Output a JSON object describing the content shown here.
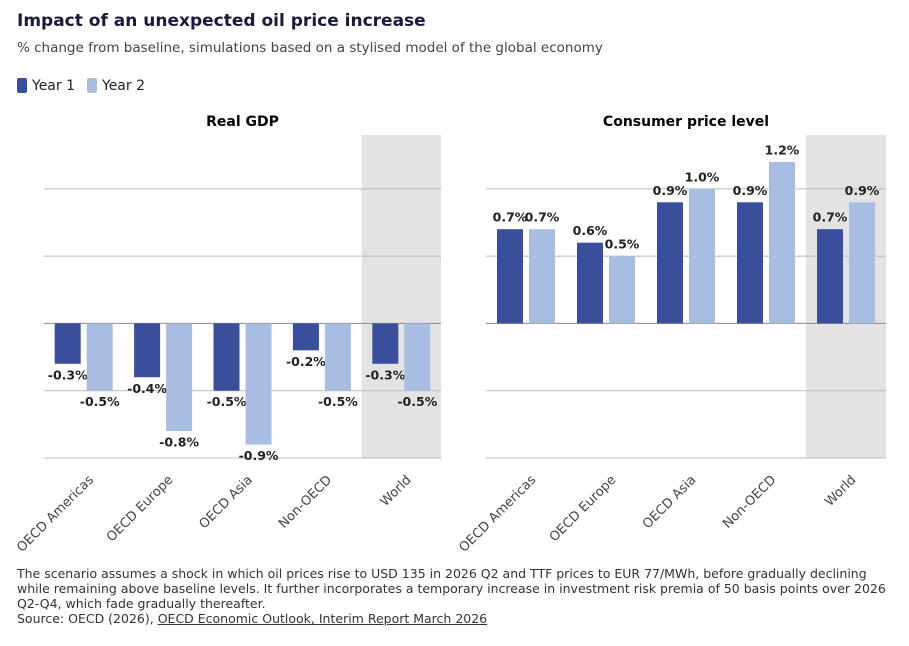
{
  "title": "Impact of an unexpected oil price increase",
  "subtitle": "% change from baseline, simulations based on a stylised model of the global economy",
  "note": "The scenario assumes a shock in which oil prices rise to USD 135 in 2026 Q2 and TTF prices to EUR 77/MWh, before gradually declining while remaining above baseline levels. It further incorporates a temporary increase in investment risk premia of 50 basis points over 2026 Q2-Q4, which fade gradually thereafter.",
  "source": "Source: OECD (2026),",
  "source_link": "OECD Economic Outlook, Interim Report March 2026",
  "chart_data": [
    {
      "type": "bar",
      "title": "Real GDP",
      "categories": [
        "OECD Americas",
        "OECD Europe",
        "OECD Asia",
        "Non-OECD",
        "World"
      ],
      "series": [
        {
          "name": "Year 1",
          "color": "#3a4f9b",
          "values": [
            -0.3,
            -0.4,
            -0.5,
            -0.2,
            -0.3
          ],
          "value_labels": [
            "-0.3%",
            "-0.4%",
            "-0.5%",
            "-0.2%",
            "-0.3%"
          ]
        },
        {
          "name": "Year 2",
          "color": "#a9bde2",
          "values": [
            -0.5,
            -0.8,
            -0.9,
            -0.5,
            -0.5
          ],
          "value_labels": [
            "-0.5%",
            "-0.8%",
            "-0.9%",
            "-0.5%",
            "-0.5%"
          ]
        }
      ],
      "ylim": [
        -1,
        1.4
      ],
      "yticks": [
        -1,
        -0.5,
        0,
        0.5,
        1
      ],
      "grid": true,
      "highlight_index": 4,
      "legend": "top-left"
    },
    {
      "type": "bar",
      "title": "Consumer price level",
      "categories": [
        "OECD Americas",
        "OECD Europe",
        "OECD Asia",
        "Non-OECD",
        "World"
      ],
      "series": [
        {
          "name": "Year 1",
          "color": "#3a4f9b",
          "values": [
            0.7,
            0.6,
            0.9,
            0.9,
            0.7
          ],
          "value_labels": [
            "0.7%",
            "0.6%",
            "0.9%",
            "0.9%",
            "0.7%"
          ]
        },
        {
          "name": "Year 2",
          "color": "#a9bde2",
          "values": [
            0.7,
            0.5,
            1.0,
            1.2,
            0.9
          ],
          "value_labels": [
            "0.7%",
            "0.5%",
            "1.0%",
            "1.2%",
            "0.9%"
          ]
        }
      ],
      "ylim": [
        -1,
        1.4
      ],
      "yticks": [
        -1,
        -0.5,
        0,
        0.5,
        1
      ],
      "grid": true,
      "highlight_index": 4
    }
  ]
}
